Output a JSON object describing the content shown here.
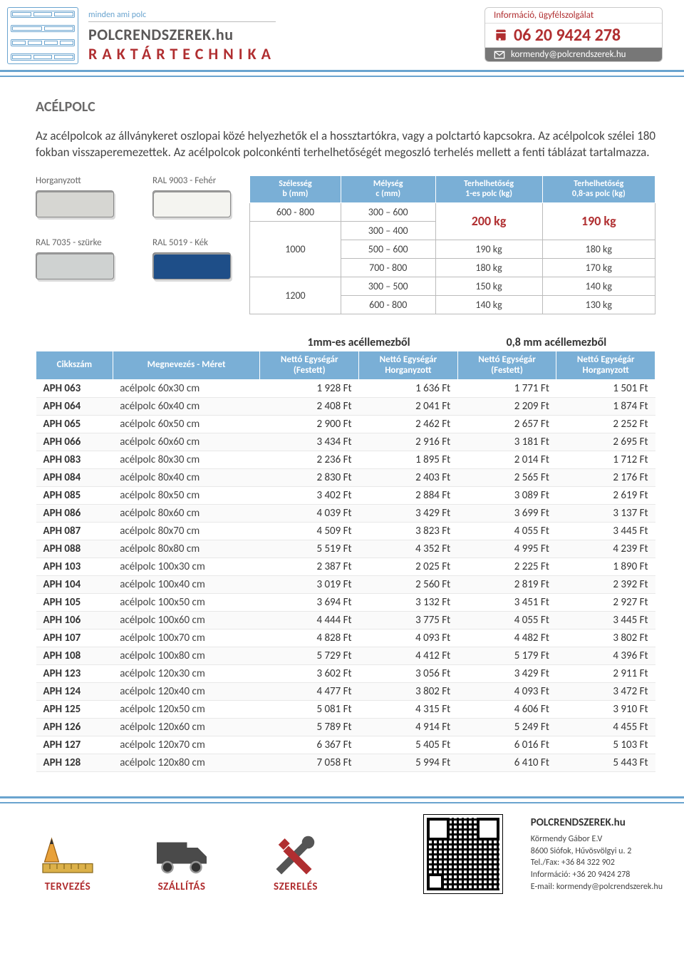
{
  "brand": {
    "tagline": "minden ami polc",
    "name": "POLCRENDSZEREK",
    "domain": ".hu",
    "sub": "RAKTÁRTECHNIKA"
  },
  "contact": {
    "info_label": "Információ, ügyfélszolgálat",
    "phone": "06 20 9424 278",
    "email": "kormendy@polcrendszerek.hu"
  },
  "page": {
    "title": "ACÉLPOLC",
    "description": "Az acélpolcok az állványkeret oszlopai közé helyezhetők el a hossztartókra, vagy a polctartó kapcsokra. Az acélpolcok szélei 180 fokban visszaperemezettek. Az acélpolcok polconkénti terhelhetőségét megoszló terhelés mellett a fenti táblázat tartalmazza."
  },
  "colors": [
    {
      "label": "Horganyzott",
      "hex": "#d6d6d2"
    },
    {
      "label": "RAL 9003 - Fehér",
      "hex": "#f4f4f0"
    },
    {
      "label": "RAL 7035 - szürke",
      "hex": "#cfd2d1"
    },
    {
      "label": "RAL 5019 - Kék",
      "hex": "#1e4e88"
    }
  ],
  "load_table": {
    "headers": [
      "Szélesség\nb (mm)",
      "Mélység\nc (mm)",
      "Terhelhetőség\n1-es polc (kg)",
      "Terhelhetőség\n0,8-as polc (kg)"
    ],
    "rows": [
      {
        "w": "600 - 800",
        "d": "300 – 600",
        "l1": "200 kg",
        "l2": "190 kg",
        "merge_w": false,
        "merge_l": true
      },
      {
        "w": "",
        "d": "300 – 400",
        "l1": "",
        "l2": "",
        "w_val": "1000",
        "w_span": 3
      },
      {
        "w": "1000",
        "d": "500 – 600",
        "l1": "190 kg",
        "l2": "180 kg"
      },
      {
        "w": "",
        "d": "700 - 800",
        "l1": "180 kg",
        "l2": "170 kg"
      },
      {
        "w": "1200",
        "d": "300 – 500",
        "l1": "150 kg",
        "l2": "140 kg",
        "w_span": 2
      },
      {
        "w": "",
        "d": "600 - 800",
        "l1": "140 kg",
        "l2": "130 kg"
      }
    ]
  },
  "price_table": {
    "section_left": "1mm-es acéllemezből",
    "section_right": "0,8 mm acéllemezből",
    "sub_headers": [
      "Cikkszám",
      "Megnevezés - Méret",
      "Nettó Egységár\n(Festett)",
      "Nettó Egységár\nHorganyzott",
      "Nettó Egységár\n(Festett)",
      "Nettó Egységár\nHorganyzott"
    ],
    "rows": [
      [
        "APH 063",
        "acélpolc 60x30 cm",
        "1 928 Ft",
        "1 636 Ft",
        "1 771 Ft",
        "1 501 Ft"
      ],
      [
        "APH 064",
        "acélpolc 60x40 cm",
        "2 408 Ft",
        "2 041 Ft",
        "2 209 Ft",
        "1 874 Ft"
      ],
      [
        "APH 065",
        "acélpolc 60x50 cm",
        "2 900 Ft",
        "2 462 Ft",
        "2 657 Ft",
        "2 252 Ft"
      ],
      [
        "APH 066",
        "acélpolc 60x60 cm",
        "3 434 Ft",
        "2 916 Ft",
        "3 181 Ft",
        "2 695 Ft"
      ],
      [
        "APH 083",
        "acélpolc 80x30 cm",
        "2 236 Ft",
        "1 895 Ft",
        "2 014 Ft",
        "1 712 Ft"
      ],
      [
        "APH 084",
        "acélpolc 80x40 cm",
        "2 830 Ft",
        "2 403 Ft",
        "2 565 Ft",
        "2 176 Ft"
      ],
      [
        "APH 085",
        "acélpolc 80x50 cm",
        "3 402 Ft",
        "2 884 Ft",
        "3 089 Ft",
        "2 619 Ft"
      ],
      [
        "APH 086",
        "acélpolc 80x60 cm",
        "4 039 Ft",
        "3 429 Ft",
        "3 699 Ft",
        "3 137 Ft"
      ],
      [
        "APH 087",
        "acélpolc 80x70 cm",
        "4 509 Ft",
        "3 823 Ft",
        "4 055 Ft",
        "3 445 Ft"
      ],
      [
        "APH 088",
        "acélpolc 80x80 cm",
        "5 519 Ft",
        "4 352 Ft",
        "4 995 Ft",
        "4 239 Ft"
      ],
      [
        "APH 103",
        "acélpolc 100x30 cm",
        "2 387 Ft",
        "2 025 Ft",
        "2 225 Ft",
        "1 890 Ft"
      ],
      [
        "APH 104",
        "acélpolc 100x40 cm",
        "3 019 Ft",
        "2 560 Ft",
        "2 819 Ft",
        "2 392 Ft"
      ],
      [
        "APH 105",
        "acélpolc 100x50 cm",
        "3 694 Ft",
        "3 132 Ft",
        "3 451 Ft",
        "2 927 Ft"
      ],
      [
        "APH 106",
        "acélpolc 100x60 cm",
        "4 444 Ft",
        "3 775 Ft",
        "4 055 Ft",
        "3 445 Ft"
      ],
      [
        "APH 107",
        "acélpolc 100x70 cm",
        "4 828 Ft",
        "4 093 Ft",
        "4 482 Ft",
        "3 802 Ft"
      ],
      [
        "APH 108",
        "acélpolc 100x80 cm",
        "5 729 Ft",
        "4 412 Ft",
        "5 179 Ft",
        "4 396 Ft"
      ],
      [
        "APH 123",
        "acélpolc 120x30 cm",
        "3 602 Ft",
        "3 056 Ft",
        "3 429 Ft",
        "2 911 Ft"
      ],
      [
        "APH 124",
        "acélpolc 120x40 cm",
        "4 477 Ft",
        "3 802 Ft",
        "4 093 Ft",
        "3 472 Ft"
      ],
      [
        "APH 125",
        "acélpolc 120x50 cm",
        "5 081 Ft",
        "4 315 Ft",
        "4 606 Ft",
        "3 910 Ft"
      ],
      [
        "APH 126",
        "acélpolc 120x60 cm",
        "5 789 Ft",
        "4 914 Ft",
        "5 249 Ft",
        "4 455 Ft"
      ],
      [
        "APH 127",
        "acélpolc 120x70 cm",
        "6 367 Ft",
        "5 405 Ft",
        "6 016 Ft",
        "5 103 Ft"
      ],
      [
        "APH 128",
        "acélpolc 120x80 cm",
        "7 058 Ft",
        "5 994 Ft",
        "6 410 Ft",
        "5 443 Ft"
      ]
    ]
  },
  "footer": {
    "services": [
      "TERVEZÉS",
      "SZÁLLÍTÁS",
      "SZERELÉS"
    ],
    "company": {
      "title": "POLCRENDSZEREK.hu",
      "lines": [
        "Körmendy Gábor E.V",
        "8600 Siófok, Hűvösvölgyi u. 2",
        "Tel./Fax: +36 84 322 902",
        "Információ: +36 20 9424 278",
        "E-mail: kormendy@polcrendszerek.hu"
      ]
    }
  },
  "theme": {
    "blue": "#7aafd6",
    "red": "#b02e30",
    "grey": "#6b6a6a"
  }
}
